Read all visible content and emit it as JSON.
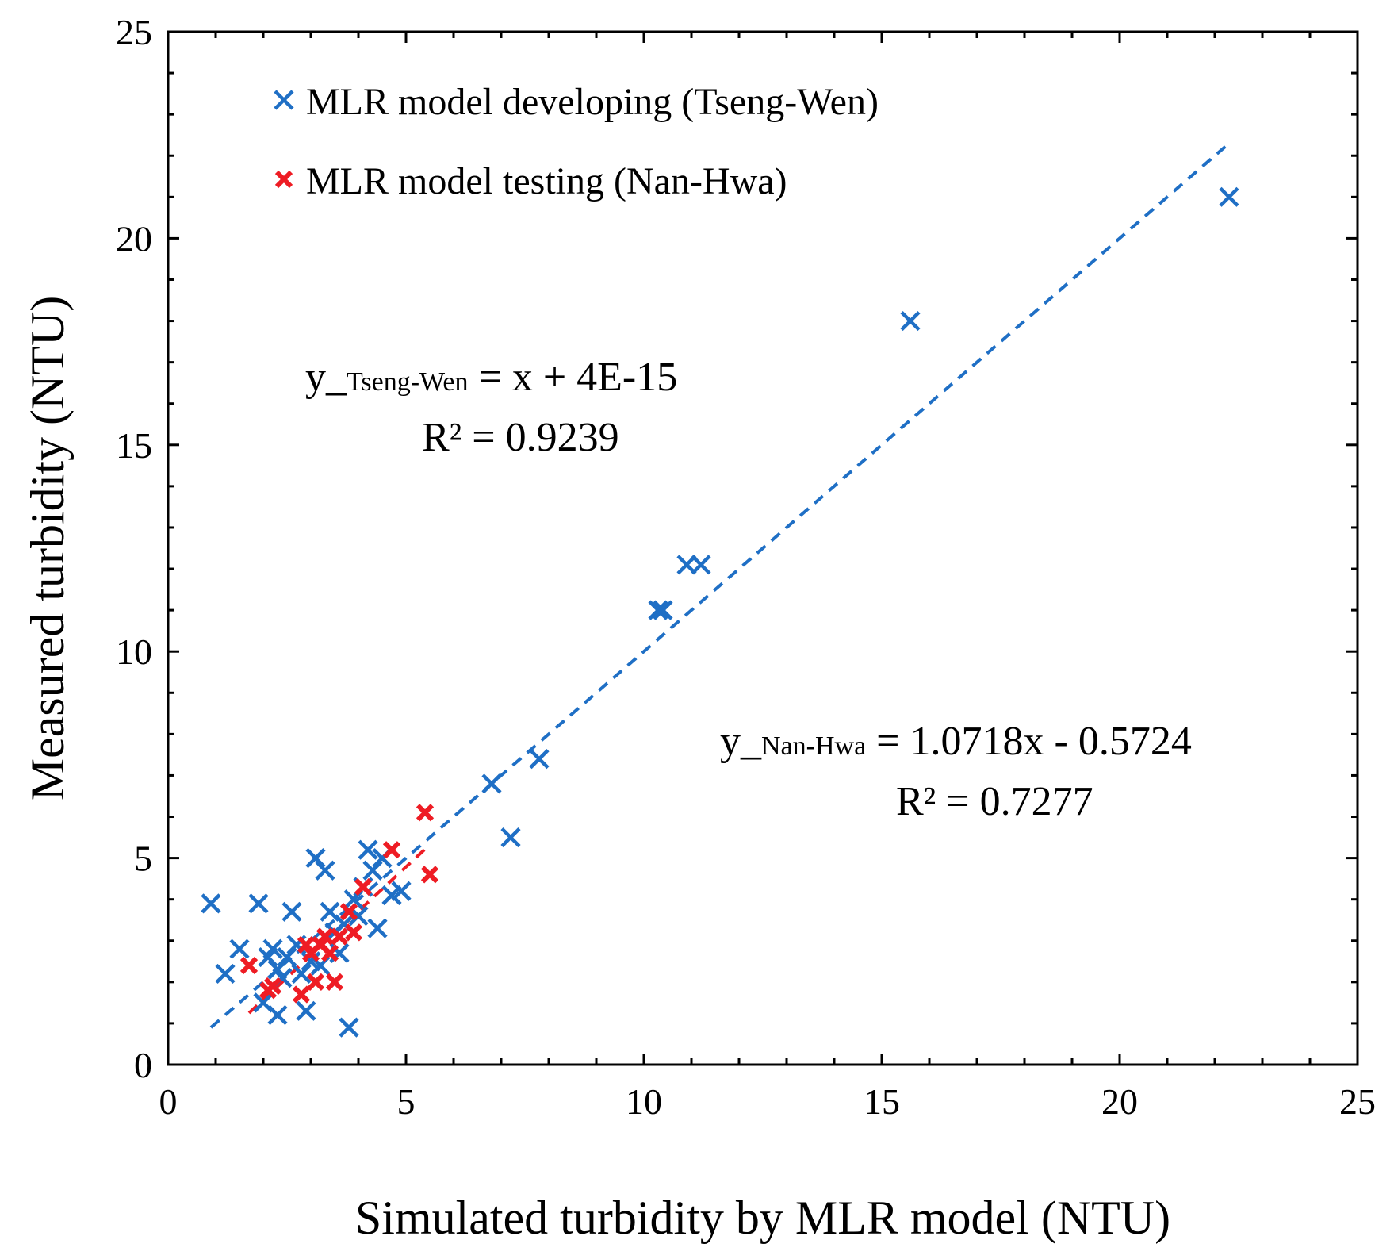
{
  "chart_data": {
    "type": "scatter",
    "title": "",
    "xlabel": "Simulated  turbidity  by MLR model (NTU)",
    "ylabel": "Measured turbidity  (NTU)",
    "xlim": [
      0,
      25
    ],
    "ylim": [
      0,
      25
    ],
    "x_ticks": [
      0,
      5,
      10,
      15,
      20,
      25
    ],
    "y_ticks": [
      0,
      5,
      10,
      15,
      20,
      25
    ],
    "minor_tick_step": 1,
    "grid": false,
    "legend_position": "top-left",
    "colors": {
      "tseng_wen": "#1f6fc5",
      "nan_hwa": "#ee1c24",
      "axis": "#000000"
    },
    "series": [
      {
        "name": "MLR model developing (Tseng-Wen)",
        "marker": "x",
        "color": "#1f6fc5",
        "points": [
          [
            0.9,
            3.9
          ],
          [
            1.2,
            2.2
          ],
          [
            1.5,
            2.8
          ],
          [
            1.9,
            3.9
          ],
          [
            2.0,
            1.5
          ],
          [
            2.1,
            2.6
          ],
          [
            2.2,
            2.8
          ],
          [
            2.3,
            1.2
          ],
          [
            2.3,
            2.3
          ],
          [
            2.4,
            2.1
          ],
          [
            2.5,
            2.6
          ],
          [
            2.6,
            3.7
          ],
          [
            2.7,
            2.9
          ],
          [
            2.8,
            2.2
          ],
          [
            2.9,
            1.3
          ],
          [
            3.0,
            2.5
          ],
          [
            3.1,
            5.0
          ],
          [
            3.2,
            2.4
          ],
          [
            3.3,
            4.7
          ],
          [
            3.4,
            3.7
          ],
          [
            3.5,
            3.2
          ],
          [
            3.6,
            2.7
          ],
          [
            3.7,
            3.4
          ],
          [
            3.8,
            0.9
          ],
          [
            3.9,
            4.0
          ],
          [
            4.0,
            3.6
          ],
          [
            4.1,
            4.3
          ],
          [
            4.2,
            5.2
          ],
          [
            4.3,
            4.7
          ],
          [
            4.4,
            3.3
          ],
          [
            4.5,
            5.0
          ],
          [
            4.7,
            4.1
          ],
          [
            4.9,
            4.2
          ],
          [
            6.8,
            6.8
          ],
          [
            7.2,
            5.5
          ],
          [
            7.8,
            7.4
          ],
          [
            10.3,
            11.0
          ],
          [
            10.4,
            11.0
          ],
          [
            10.9,
            12.1
          ],
          [
            11.2,
            12.1
          ],
          [
            15.6,
            18.0
          ],
          [
            22.3,
            21.0
          ]
        ]
      },
      {
        "name": "MLR model testing (Nan-Hwa)",
        "marker": "x",
        "color": "#ee1c24",
        "points": [
          [
            1.7,
            2.4
          ],
          [
            2.1,
            1.8
          ],
          [
            2.2,
            1.9
          ],
          [
            2.8,
            1.7
          ],
          [
            2.9,
            2.9
          ],
          [
            3.0,
            2.7
          ],
          [
            3.1,
            2.0
          ],
          [
            3.2,
            2.9
          ],
          [
            3.3,
            3.1
          ],
          [
            3.4,
            2.7
          ],
          [
            3.5,
            2.0
          ],
          [
            3.6,
            3.1
          ],
          [
            3.8,
            3.7
          ],
          [
            3.9,
            3.2
          ],
          [
            4.1,
            4.3
          ],
          [
            4.7,
            5.2
          ],
          [
            5.4,
            6.1
          ],
          [
            5.5,
            4.6
          ]
        ]
      }
    ],
    "trendlines": [
      {
        "name": "Tseng-Wen fit",
        "color": "#1f6fc5",
        "slope": 1.0,
        "intercept": 0.0,
        "x_range": [
          0.9,
          22.3
        ]
      },
      {
        "name": "Nan-Hwa fit",
        "color": "#ee1c24",
        "slope": 1.0718,
        "intercept": -0.5724,
        "x_range": [
          1.7,
          5.5
        ]
      }
    ],
    "annotations": {
      "tseng_wen": {
        "prefix": "y_",
        "subscript": "Tseng-Wen",
        "equation": " = x + 4E-15",
        "r2": "R² = 0.9239"
      },
      "nan_hwa": {
        "prefix": "y_",
        "subscript": "Nan-Hwa",
        "equation": " = 1.0718x - 0.5724",
        "r2": "R² = 0.7277"
      }
    }
  }
}
